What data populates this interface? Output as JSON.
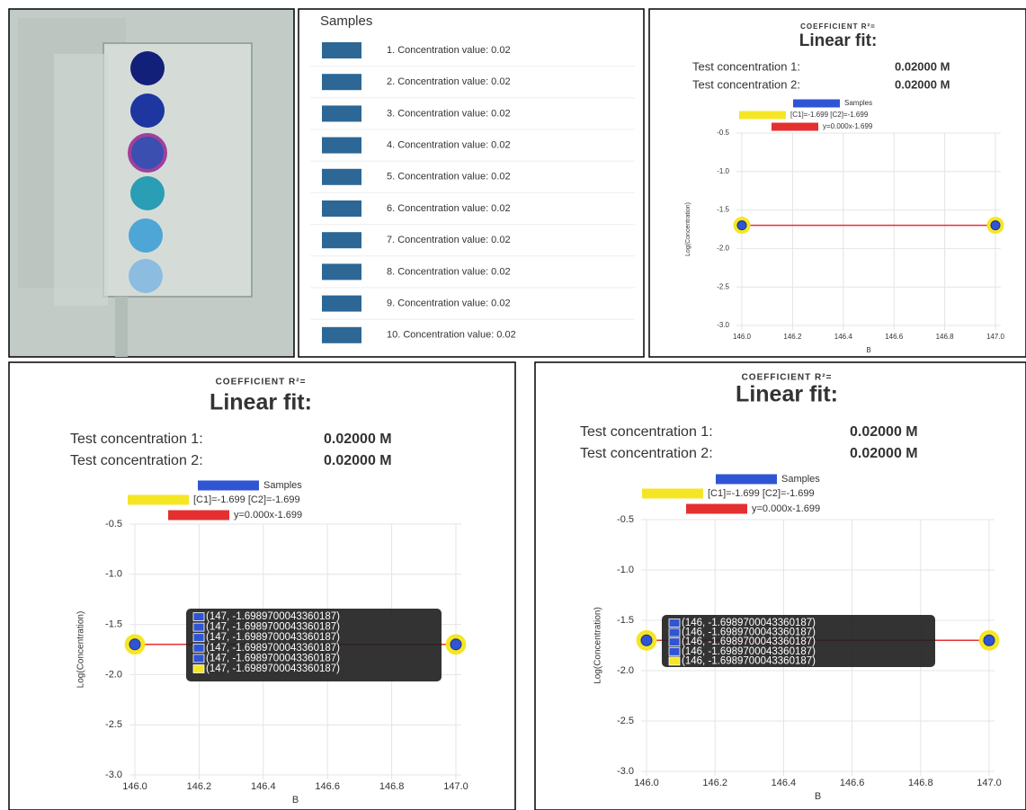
{
  "samples": {
    "title": "Samples",
    "color": "#2c6796",
    "items": [
      "1. Concentration value: 0.02",
      "2. Concentration value: 0.02",
      "3. Concentration value: 0.02",
      "4. Concentration value: 0.02",
      "5. Concentration value: 0.02",
      "6. Concentration value: 0.02",
      "7. Concentration value: 0.02",
      "8. Concentration value: 0.02",
      "9. Concentration value: 0.02",
      "10. Concentration value: 0.02"
    ]
  },
  "chart_data": [
    {
      "type": "scatter",
      "subtitle": "COEFFICIENT R²=",
      "title": "Linear fit:",
      "readouts": [
        {
          "label": "Test concentration 1:",
          "value": "0.02000 M"
        },
        {
          "label": "Test concentration 2:",
          "value": "0.02000 M"
        }
      ],
      "x_label": "B",
      "y_label": "Log(Concentration)",
      "xlim": [
        146,
        147
      ],
      "ylim": [
        -3,
        -0.5
      ],
      "xticks": [
        {
          "value": 146,
          "label": "146.0"
        },
        146.2,
        146.4,
        146.6,
        146.8,
        {
          "value": 147,
          "label": "147.0"
        }
      ],
      "yticks": [
        -0.5,
        {
          "value": -1,
          "label": "-1.0"
        },
        -1.5,
        {
          "value": -2,
          "label": "-2.0"
        },
        -2.5,
        {
          "value": -3,
          "label": "-3.0"
        }
      ],
      "grid": true,
      "series": [
        {
          "name": "Samples",
          "color": "#2f55d4",
          "x": [
            146,
            147
          ],
          "values": [
            -1.699,
            -1.699
          ]
        },
        {
          "name": "[C1]=-1.699  [C2]=-1.699",
          "color": "#f5e625",
          "x": [
            146,
            147
          ],
          "values": [
            -1.699,
            -1.699
          ]
        },
        {
          "name": "y=0.000x-1.699",
          "color": "#e53030",
          "x": [
            146,
            147
          ],
          "values": [
            -1.699,
            -1.699
          ]
        }
      ]
    },
    {
      "type": "scatter",
      "subtitle": "COEFFICIENT R²=",
      "title": "Linear fit:",
      "readouts": [
        {
          "label": "Test concentration 1:",
          "value": "0.02000 M"
        },
        {
          "label": "Test concentration 2:",
          "value": "0.02000 M"
        }
      ],
      "x_label": "B",
      "y_label": "Log(Concentration)",
      "xlim": [
        146,
        147
      ],
      "ylim": [
        -3,
        -0.5
      ],
      "xticks": [
        {
          "value": 146,
          "label": "146.0"
        },
        146.2,
        146.4,
        146.6,
        146.8,
        {
          "value": 147,
          "label": "147.0"
        }
      ],
      "yticks": [
        -0.5,
        {
          "value": -1,
          "label": "-1.0"
        },
        -1.5,
        {
          "value": -2,
          "label": "-2.0"
        },
        -2.5,
        {
          "value": -3,
          "label": "-3.0"
        }
      ],
      "grid": true,
      "series": [
        {
          "name": "Samples",
          "color": "#2f55d4",
          "x": [
            146,
            147
          ],
          "values": [
            -1.699,
            -1.699
          ]
        },
        {
          "name": "[C1]=-1.699  [C2]=-1.699",
          "color": "#f5e625",
          "x": [
            146,
            147
          ],
          "values": [
            -1.699,
            -1.699
          ]
        },
        {
          "name": "y=0.000x-1.699",
          "color": "#e53030",
          "x": [
            146,
            147
          ],
          "values": [
            -1.699,
            -1.699
          ]
        }
      ],
      "tooltip": [
        {
          "color": "#2f55d4",
          "text": "(147, -1.6989700043360187)"
        },
        {
          "color": "#2f55d4",
          "text": "(147, -1.6989700043360187)"
        },
        {
          "color": "#2f55d4",
          "text": "(147, -1.6989700043360187)"
        },
        {
          "color": "#2f55d4",
          "text": "(147, -1.6989700043360187)"
        },
        {
          "color": "#2f55d4",
          "text": "(147, -1.6989700043360187)"
        },
        {
          "color": "#f5e625",
          "text": "(147, -1.6989700043360187)"
        }
      ]
    },
    {
      "type": "scatter",
      "subtitle": "COEFFICIENT R²=",
      "title": "Linear fit:",
      "readouts": [
        {
          "label": "Test concentration 1:",
          "value": "0.02000 M"
        },
        {
          "label": "Test concentration 2:",
          "value": "0.02000 M"
        }
      ],
      "x_label": "B",
      "y_label": "Log(Concentration)",
      "xlim": [
        146,
        147
      ],
      "ylim": [
        -3,
        -0.5
      ],
      "xticks": [
        {
          "value": 146,
          "label": "146.0"
        },
        146.2,
        146.4,
        146.6,
        146.8,
        {
          "value": 147,
          "label": "147.0"
        }
      ],
      "yticks": [
        -0.5,
        {
          "value": -1,
          "label": "-1.0"
        },
        -1.5,
        {
          "value": -2,
          "label": "-2.0"
        },
        -2.5,
        {
          "value": -3,
          "label": "-3.0"
        }
      ],
      "grid": true,
      "series": [
        {
          "name": "Samples",
          "color": "#2f55d4",
          "x": [
            146,
            147
          ],
          "values": [
            -1.699,
            -1.699
          ]
        },
        {
          "name": "[C1]=-1.699  [C2]=-1.699",
          "color": "#f5e625",
          "x": [
            146,
            147
          ],
          "values": [
            -1.699,
            -1.699
          ]
        },
        {
          "name": "y=0.000x-1.699",
          "color": "#e53030",
          "x": [
            146,
            147
          ],
          "values": [
            -1.699,
            -1.699
          ]
        }
      ],
      "tooltip": [
        {
          "color": "#2f55d4",
          "text": "(146, -1.6989700043360187)"
        },
        {
          "color": "#2f55d4",
          "text": "(146, -1.6989700043360187)"
        },
        {
          "color": "#2f55d4",
          "text": "(146, -1.6989700043360187)"
        },
        {
          "color": "#2f55d4",
          "text": "(146, -1.6989700043360187)"
        },
        {
          "color": "#f5e625",
          "text": "(146, -1.6989700043360187)"
        }
      ]
    }
  ]
}
